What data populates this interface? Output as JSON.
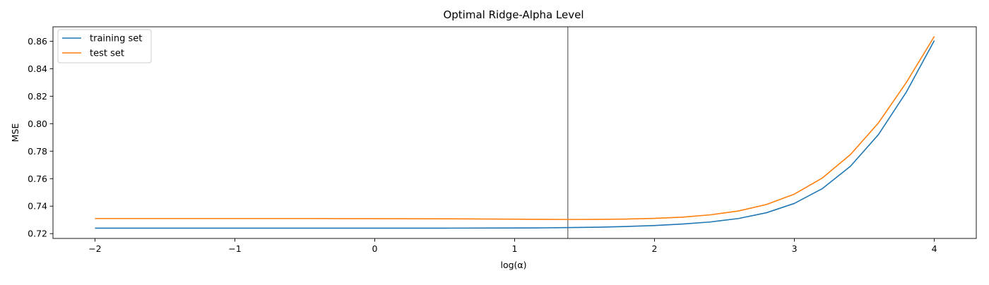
{
  "chart_data": {
    "type": "line",
    "title": "Optimal Ridge-Alpha Level",
    "xlabel": "log(α)",
    "ylabel": "MSE",
    "xlim": [
      -2.3,
      4.3
    ],
    "ylim": [
      0.7165,
      0.8705
    ],
    "xticks": [
      -2,
      -1,
      0,
      1,
      2,
      3,
      4
    ],
    "xtick_labels": [
      "−2",
      "−1",
      "0",
      "1",
      "2",
      "3",
      "4"
    ],
    "yticks": [
      0.72,
      0.74,
      0.76,
      0.78,
      0.8,
      0.82,
      0.84,
      0.86
    ],
    "ytick_labels": [
      "0.72",
      "0.74",
      "0.76",
      "0.78",
      "0.80",
      "0.82",
      "0.84",
      "0.86"
    ],
    "grid": false,
    "legend_position": "top-left",
    "vertical_line": {
      "x": 1.38,
      "color": "#808080"
    },
    "x": [
      -2.0,
      -1.5,
      -1.0,
      -0.5,
      0.0,
      0.5,
      1.0,
      1.2,
      1.4,
      1.6,
      1.8,
      2.0,
      2.2,
      2.4,
      2.6,
      2.8,
      3.0,
      3.2,
      3.4,
      3.6,
      3.8,
      4.0
    ],
    "series": [
      {
        "name": "training set",
        "color": "#1f77b4",
        "values": [
          0.724,
          0.724,
          0.724,
          0.724,
          0.724,
          0.724,
          0.7241,
          0.7242,
          0.7244,
          0.7247,
          0.7252,
          0.7259,
          0.727,
          0.7285,
          0.731,
          0.7352,
          0.742,
          0.7528,
          0.769,
          0.792,
          0.823,
          0.8605
        ]
      },
      {
        "name": "test set",
        "color": "#ff7f0e",
        "values": [
          0.731,
          0.731,
          0.731,
          0.731,
          0.7309,
          0.7308,
          0.7305,
          0.7304,
          0.7303,
          0.7304,
          0.7306,
          0.7311,
          0.732,
          0.7337,
          0.7365,
          0.7412,
          0.7488,
          0.7605,
          0.7775,
          0.8005,
          0.83,
          0.8635
        ]
      }
    ]
  }
}
